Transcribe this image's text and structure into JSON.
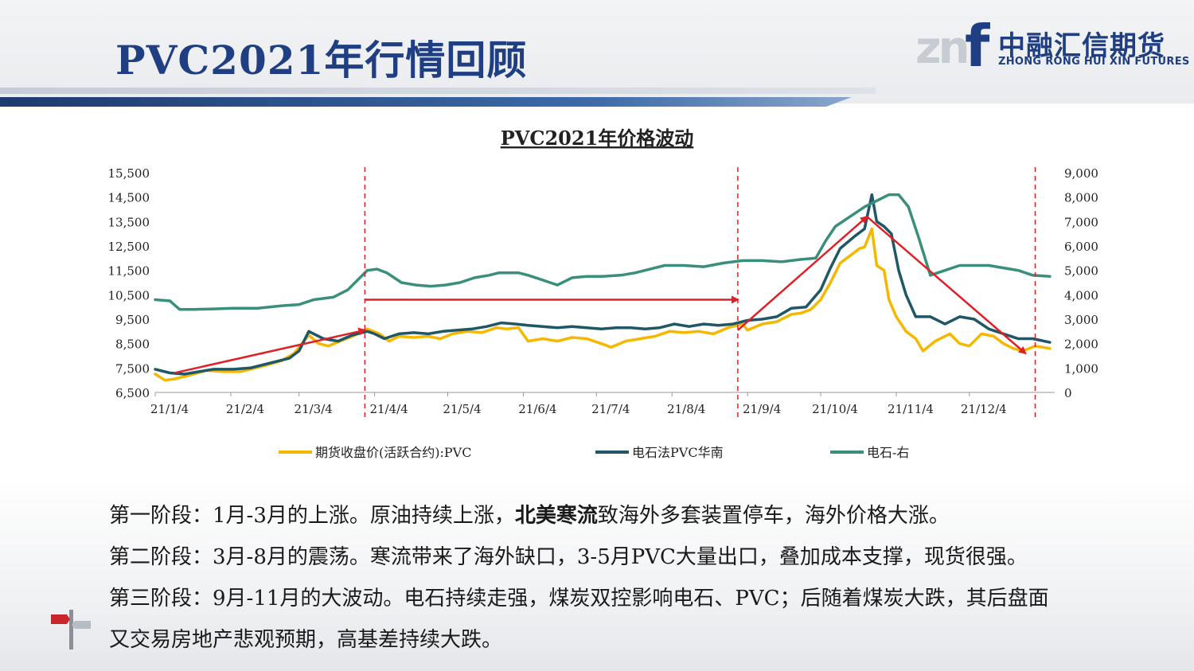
{
  "page": {
    "title": "PVC2021年行情回顾",
    "logo_cn": "中融汇信期货",
    "logo_en": "ZHONG RONG HUI XIN FUTURES",
    "logo_mark": "zn",
    "logo_letter": "f"
  },
  "chart_data": {
    "type": "line",
    "title": "PVC2021年价格波动",
    "x_ticks": [
      "21/1/4",
      "21/2/4",
      "21/3/4",
      "21/4/4",
      "21/5/4",
      "21/6/4",
      "21/7/4",
      "21/8/4",
      "21/9/4",
      "21/10/4",
      "21/11/4",
      "21/12/4"
    ],
    "y_left": {
      "ticks": [
        "15,500",
        "14,500",
        "13,500",
        "12,500",
        "11,500",
        "10,500",
        "9,500",
        "8,500",
        "7,500",
        "6,500"
      ],
      "range": [
        6500,
        15500
      ]
    },
    "y_right": {
      "ticks": [
        "9,000",
        "8,000",
        "7,000",
        "6,000",
        "5,000",
        "4,000",
        "3,000",
        "2,000",
        "1,000",
        "0"
      ],
      "range": [
        0,
        9000
      ]
    },
    "series": [
      {
        "name": "期货收盘价(活跃合约):PVC",
        "axis": "left",
        "color": "#f5b800",
        "points": [
          [
            "2021-01-04",
            7250
          ],
          [
            "2021-01-08",
            7000
          ],
          [
            "2021-01-12",
            7050
          ],
          [
            "2021-01-18",
            7200
          ],
          [
            "2021-01-25",
            7400
          ],
          [
            "2021-02-01",
            7350
          ],
          [
            "2021-02-08",
            7350
          ],
          [
            "2021-02-18",
            7600
          ],
          [
            "2021-02-25",
            7800
          ],
          [
            "2021-03-02",
            8100
          ],
          [
            "2021-03-08",
            8850
          ],
          [
            "2021-03-12",
            8500
          ],
          [
            "2021-03-16",
            8400
          ],
          [
            "2021-03-22",
            8650
          ],
          [
            "2021-03-26",
            8800
          ],
          [
            "2021-04-01",
            9100
          ],
          [
            "2021-04-06",
            8900
          ],
          [
            "2021-04-10",
            8600
          ],
          [
            "2021-04-14",
            8800
          ],
          [
            "2021-04-20",
            8750
          ],
          [
            "2021-04-26",
            8800
          ],
          [
            "2021-05-01",
            8700
          ],
          [
            "2021-05-06",
            8900
          ],
          [
            "2021-05-12",
            9000
          ],
          [
            "2021-05-18",
            8950
          ],
          [
            "2021-05-24",
            9150
          ],
          [
            "2021-05-28",
            9100
          ],
          [
            "2021-06-02",
            9150
          ],
          [
            "2021-06-06",
            8600
          ],
          [
            "2021-06-12",
            8700
          ],
          [
            "2021-06-18",
            8600
          ],
          [
            "2021-06-24",
            8750
          ],
          [
            "2021-06-30",
            8700
          ],
          [
            "2021-07-06",
            8500
          ],
          [
            "2021-07-10",
            8350
          ],
          [
            "2021-07-16",
            8600
          ],
          [
            "2021-07-22",
            8700
          ],
          [
            "2021-07-28",
            8800
          ],
          [
            "2021-08-03",
            9000
          ],
          [
            "2021-08-09",
            8950
          ],
          [
            "2021-08-15",
            9000
          ],
          [
            "2021-08-21",
            8900
          ],
          [
            "2021-08-27",
            9150
          ],
          [
            "2021-09-02",
            9300
          ],
          [
            "2021-09-04",
            9050
          ],
          [
            "2021-09-10",
            9300
          ],
          [
            "2021-09-16",
            9400
          ],
          [
            "2021-09-22",
            9700
          ],
          [
            "2021-09-26",
            9750
          ],
          [
            "2021-09-30",
            9900
          ],
          [
            "2021-10-04",
            10300
          ],
          [
            "2021-10-08",
            11000
          ],
          [
            "2021-10-12",
            11800
          ],
          [
            "2021-10-16",
            12100
          ],
          [
            "2021-10-20",
            12400
          ],
          [
            "2021-10-22",
            12450
          ],
          [
            "2021-10-25",
            13200
          ],
          [
            "2021-10-27",
            11700
          ],
          [
            "2021-10-30",
            11500
          ],
          [
            "2021-11-01",
            10300
          ],
          [
            "2021-11-04",
            9600
          ],
          [
            "2021-11-08",
            9000
          ],
          [
            "2021-11-12",
            8700
          ],
          [
            "2021-11-15",
            8200
          ],
          [
            "2021-11-20",
            8600
          ],
          [
            "2021-11-26",
            8900
          ],
          [
            "2021-11-30",
            8500
          ],
          [
            "2021-12-04",
            8400
          ],
          [
            "2021-12-09",
            8900
          ],
          [
            "2021-12-14",
            8800
          ],
          [
            "2021-12-18",
            8500
          ],
          [
            "2021-12-22",
            8300
          ],
          [
            "2021-12-26",
            8200
          ],
          [
            "2021-12-31",
            8400
          ],
          [
            "2022-01-06",
            8300
          ]
        ]
      },
      {
        "name": "电石法PVC华南",
        "axis": "left",
        "color": "#1f5767",
        "points": [
          [
            "2021-01-04",
            7450
          ],
          [
            "2021-01-10",
            7300
          ],
          [
            "2021-01-16",
            7250
          ],
          [
            "2021-01-22",
            7350
          ],
          [
            "2021-01-28",
            7450
          ],
          [
            "2021-02-05",
            7450
          ],
          [
            "2021-02-12",
            7500
          ],
          [
            "2021-02-20",
            7700
          ],
          [
            "2021-02-28",
            7900
          ],
          [
            "2021-03-04",
            8200
          ],
          [
            "2021-03-08",
            9000
          ],
          [
            "2021-03-14",
            8700
          ],
          [
            "2021-03-20",
            8600
          ],
          [
            "2021-03-26",
            8850
          ],
          [
            "2021-04-01",
            9000
          ],
          [
            "2021-04-04",
            8900
          ],
          [
            "2021-04-08",
            8700
          ],
          [
            "2021-04-14",
            8900
          ],
          [
            "2021-04-20",
            8950
          ],
          [
            "2021-04-26",
            8900
          ],
          [
            "2021-05-02",
            9000
          ],
          [
            "2021-05-08",
            9050
          ],
          [
            "2021-05-14",
            9100
          ],
          [
            "2021-05-20",
            9200
          ],
          [
            "2021-05-26",
            9350
          ],
          [
            "2021-06-01",
            9300
          ],
          [
            "2021-06-06",
            9250
          ],
          [
            "2021-06-12",
            9200
          ],
          [
            "2021-06-18",
            9150
          ],
          [
            "2021-06-24",
            9200
          ],
          [
            "2021-06-30",
            9150
          ],
          [
            "2021-07-06",
            9100
          ],
          [
            "2021-07-12",
            9150
          ],
          [
            "2021-07-18",
            9150
          ],
          [
            "2021-07-24",
            9100
          ],
          [
            "2021-07-30",
            9150
          ],
          [
            "2021-08-05",
            9300
          ],
          [
            "2021-08-11",
            9200
          ],
          [
            "2021-08-17",
            9300
          ],
          [
            "2021-08-23",
            9250
          ],
          [
            "2021-08-29",
            9300
          ],
          [
            "2021-09-04",
            9450
          ],
          [
            "2021-09-10",
            9500
          ],
          [
            "2021-09-16",
            9600
          ],
          [
            "2021-09-22",
            9950
          ],
          [
            "2021-09-28",
            10000
          ],
          [
            "2021-10-04",
            10700
          ],
          [
            "2021-10-08",
            11600
          ],
          [
            "2021-10-12",
            12400
          ],
          [
            "2021-10-18",
            12900
          ],
          [
            "2021-10-22",
            13200
          ],
          [
            "2021-10-25",
            14600
          ],
          [
            "2021-10-27",
            13500
          ],
          [
            "2021-10-30",
            13300
          ],
          [
            "2021-11-02",
            13000
          ],
          [
            "2021-11-05",
            11500
          ],
          [
            "2021-11-08",
            10500
          ],
          [
            "2021-11-12",
            9600
          ],
          [
            "2021-11-18",
            9600
          ],
          [
            "2021-11-24",
            9300
          ],
          [
            "2021-11-30",
            9600
          ],
          [
            "2021-12-06",
            9500
          ],
          [
            "2021-12-12",
            9100
          ],
          [
            "2021-12-18",
            8900
          ],
          [
            "2021-12-24",
            8700
          ],
          [
            "2021-12-30",
            8700
          ],
          [
            "2022-01-06",
            8550
          ]
        ]
      },
      {
        "name": "电石-右",
        "axis": "right",
        "color": "#3a8f7c",
        "points": [
          [
            "2021-01-04",
            3800
          ],
          [
            "2021-01-10",
            3750
          ],
          [
            "2021-01-14",
            3400
          ],
          [
            "2021-01-20",
            3400
          ],
          [
            "2021-01-28",
            3420
          ],
          [
            "2021-02-05",
            3450
          ],
          [
            "2021-02-15",
            3450
          ],
          [
            "2021-02-25",
            3550
          ],
          [
            "2021-03-04",
            3600
          ],
          [
            "2021-03-10",
            3800
          ],
          [
            "2021-03-18",
            3900
          ],
          [
            "2021-03-24",
            4200
          ],
          [
            "2021-03-28",
            4600
          ],
          [
            "2021-04-01",
            5000
          ],
          [
            "2021-04-05",
            5050
          ],
          [
            "2021-04-09",
            4900
          ],
          [
            "2021-04-15",
            4500
          ],
          [
            "2021-04-21",
            4400
          ],
          [
            "2021-04-27",
            4350
          ],
          [
            "2021-05-03",
            4400
          ],
          [
            "2021-05-09",
            4500
          ],
          [
            "2021-05-15",
            4700
          ],
          [
            "2021-05-21",
            4800
          ],
          [
            "2021-05-25",
            4900
          ],
          [
            "2021-06-02",
            4900
          ],
          [
            "2021-06-06",
            4800
          ],
          [
            "2021-06-12",
            4600
          ],
          [
            "2021-06-18",
            4400
          ],
          [
            "2021-06-24",
            4700
          ],
          [
            "2021-06-30",
            4750
          ],
          [
            "2021-07-06",
            4750
          ],
          [
            "2021-07-14",
            4800
          ],
          [
            "2021-07-20",
            4900
          ],
          [
            "2021-07-26",
            5050
          ],
          [
            "2021-08-01",
            5200
          ],
          [
            "2021-08-09",
            5200
          ],
          [
            "2021-08-17",
            5150
          ],
          [
            "2021-08-25",
            5300
          ],
          [
            "2021-09-02",
            5400
          ],
          [
            "2021-09-10",
            5400
          ],
          [
            "2021-09-18",
            5350
          ],
          [
            "2021-09-26",
            5450
          ],
          [
            "2021-10-02",
            5500
          ],
          [
            "2021-10-06",
            6200
          ],
          [
            "2021-10-10",
            6800
          ],
          [
            "2021-10-16",
            7200
          ],
          [
            "2021-10-22",
            7600
          ],
          [
            "2021-10-28",
            7900
          ],
          [
            "2021-11-01",
            8100
          ],
          [
            "2021-11-05",
            8100
          ],
          [
            "2021-11-09",
            7600
          ],
          [
            "2021-11-13",
            6400
          ],
          [
            "2021-11-18",
            4800
          ],
          [
            "2021-11-24",
            5000
          ],
          [
            "2021-11-30",
            5200
          ],
          [
            "2021-12-06",
            5200
          ],
          [
            "2021-12-12",
            5200
          ],
          [
            "2021-12-18",
            5100
          ],
          [
            "2021-12-24",
            5000
          ],
          [
            "2021-12-30",
            4800
          ],
          [
            "2022-01-06",
            4750
          ]
        ]
      }
    ],
    "annotations": {
      "dashed_vlines": [
        "2021-03-31",
        "2021-08-31",
        "2021-12-31"
      ],
      "arrows": [
        {
          "from": [
            "2021-01-12",
            7300
          ],
          "to": [
            "2021-03-31",
            9050
          ]
        },
        {
          "from": [
            "2021-03-31",
            10300
          ],
          "to": [
            "2021-08-31",
            10300
          ]
        },
        {
          "from": [
            "2021-08-31",
            9050
          ],
          "to": [
            "2021-10-23",
            13700
          ]
        },
        {
          "from": [
            "2021-10-23",
            13700
          ],
          "to": [
            "2021-12-27",
            8100
          ]
        }
      ]
    },
    "legend_position": "bottom",
    "grid": false
  },
  "text": {
    "p1_a": "第一阶段：1月-3月的上涨。原油持续上涨，",
    "p1_b": "北美寒流",
    "p1_c": "致海外多套装置停车，海外价格大涨。",
    "p2": "第二阶段：3月-8月的震荡。寒流带来了海外缺口，3-5月PVC大量出口，叠加成本支撑，现货很强。",
    "p3": "第三阶段：9月-11月的大波动。电石持续走强，煤炭双控影响电石、PVC；后随着煤炭大跌，其后盘面",
    "p4": "又交易房地产悲观预期，高基差持续大跌。"
  },
  "colors": {
    "title": "#1f3f82",
    "arrow": "#e01f26"
  }
}
